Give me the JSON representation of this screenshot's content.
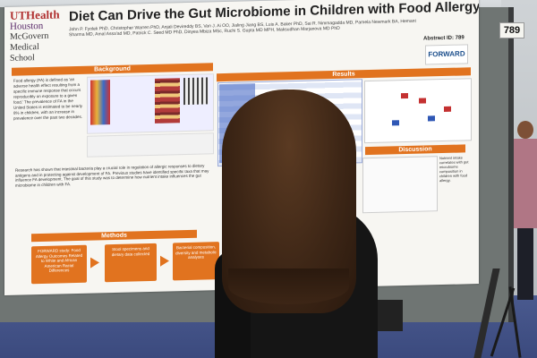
{
  "board": {
    "number": "789"
  },
  "poster": {
    "logo_lines": [
      "UTHealth",
      "Houston",
      "McGovern",
      "Medical School"
    ],
    "title": "Diet Can Drive the Gut Microbiome in Children with Food Allergy",
    "authors": "John P. Fyolek PhD, Christopher Warren PhD, Anjali Devireddy BS, Van J. Ai OO, Jialing Jiang BS, Luis A. Baker PhD, Sai R. Nimmagadda MD, Pamela Newmark BA, Hemant Sharma MD, Amal Assa'ad MD, Patrick C. Seed MD PhD, Dinyea Mbiza MSc, Ruchi S. Gupta MD MPH, Maksudhan Marjanova MD PhD",
    "abstract_label": "Abstract ID: 789",
    "forward_label": "FORWARD",
    "sections": {
      "background": "Background",
      "results": "Results",
      "methods": "Methods",
      "discussion": "Discussion"
    },
    "background_bullets": "Food allergy (FA) is defined as 'an adverse health effect resulting from a specific immune response that occurs reproducibly on exposure to a given food.' The prevalence of FA in the United States is estimated to be nearly 8% in children, with an increase in prevalence over the past two decades.",
    "background_bullets2": "Research has shown that intestinal bacteria play a crucial role in regulation of allergic responses to dietary antigens and in protecting against development of FA. Previous studies have identified specific taxa that may influence FA development. The goal of this study was to determine how nutrient intake influences the gut microbiome in children with FA.",
    "methods_boxes": [
      "FORWARD study: Food Allergy Outcomes Related to White and African American Racial Differences",
      "Stool specimens and dietary data collected",
      "Bacterial composition, diversity and metabolic analyses"
    ],
    "discussion_text": "Nutrient intake correlates with gut microbiome composition in children with food allergy."
  }
}
